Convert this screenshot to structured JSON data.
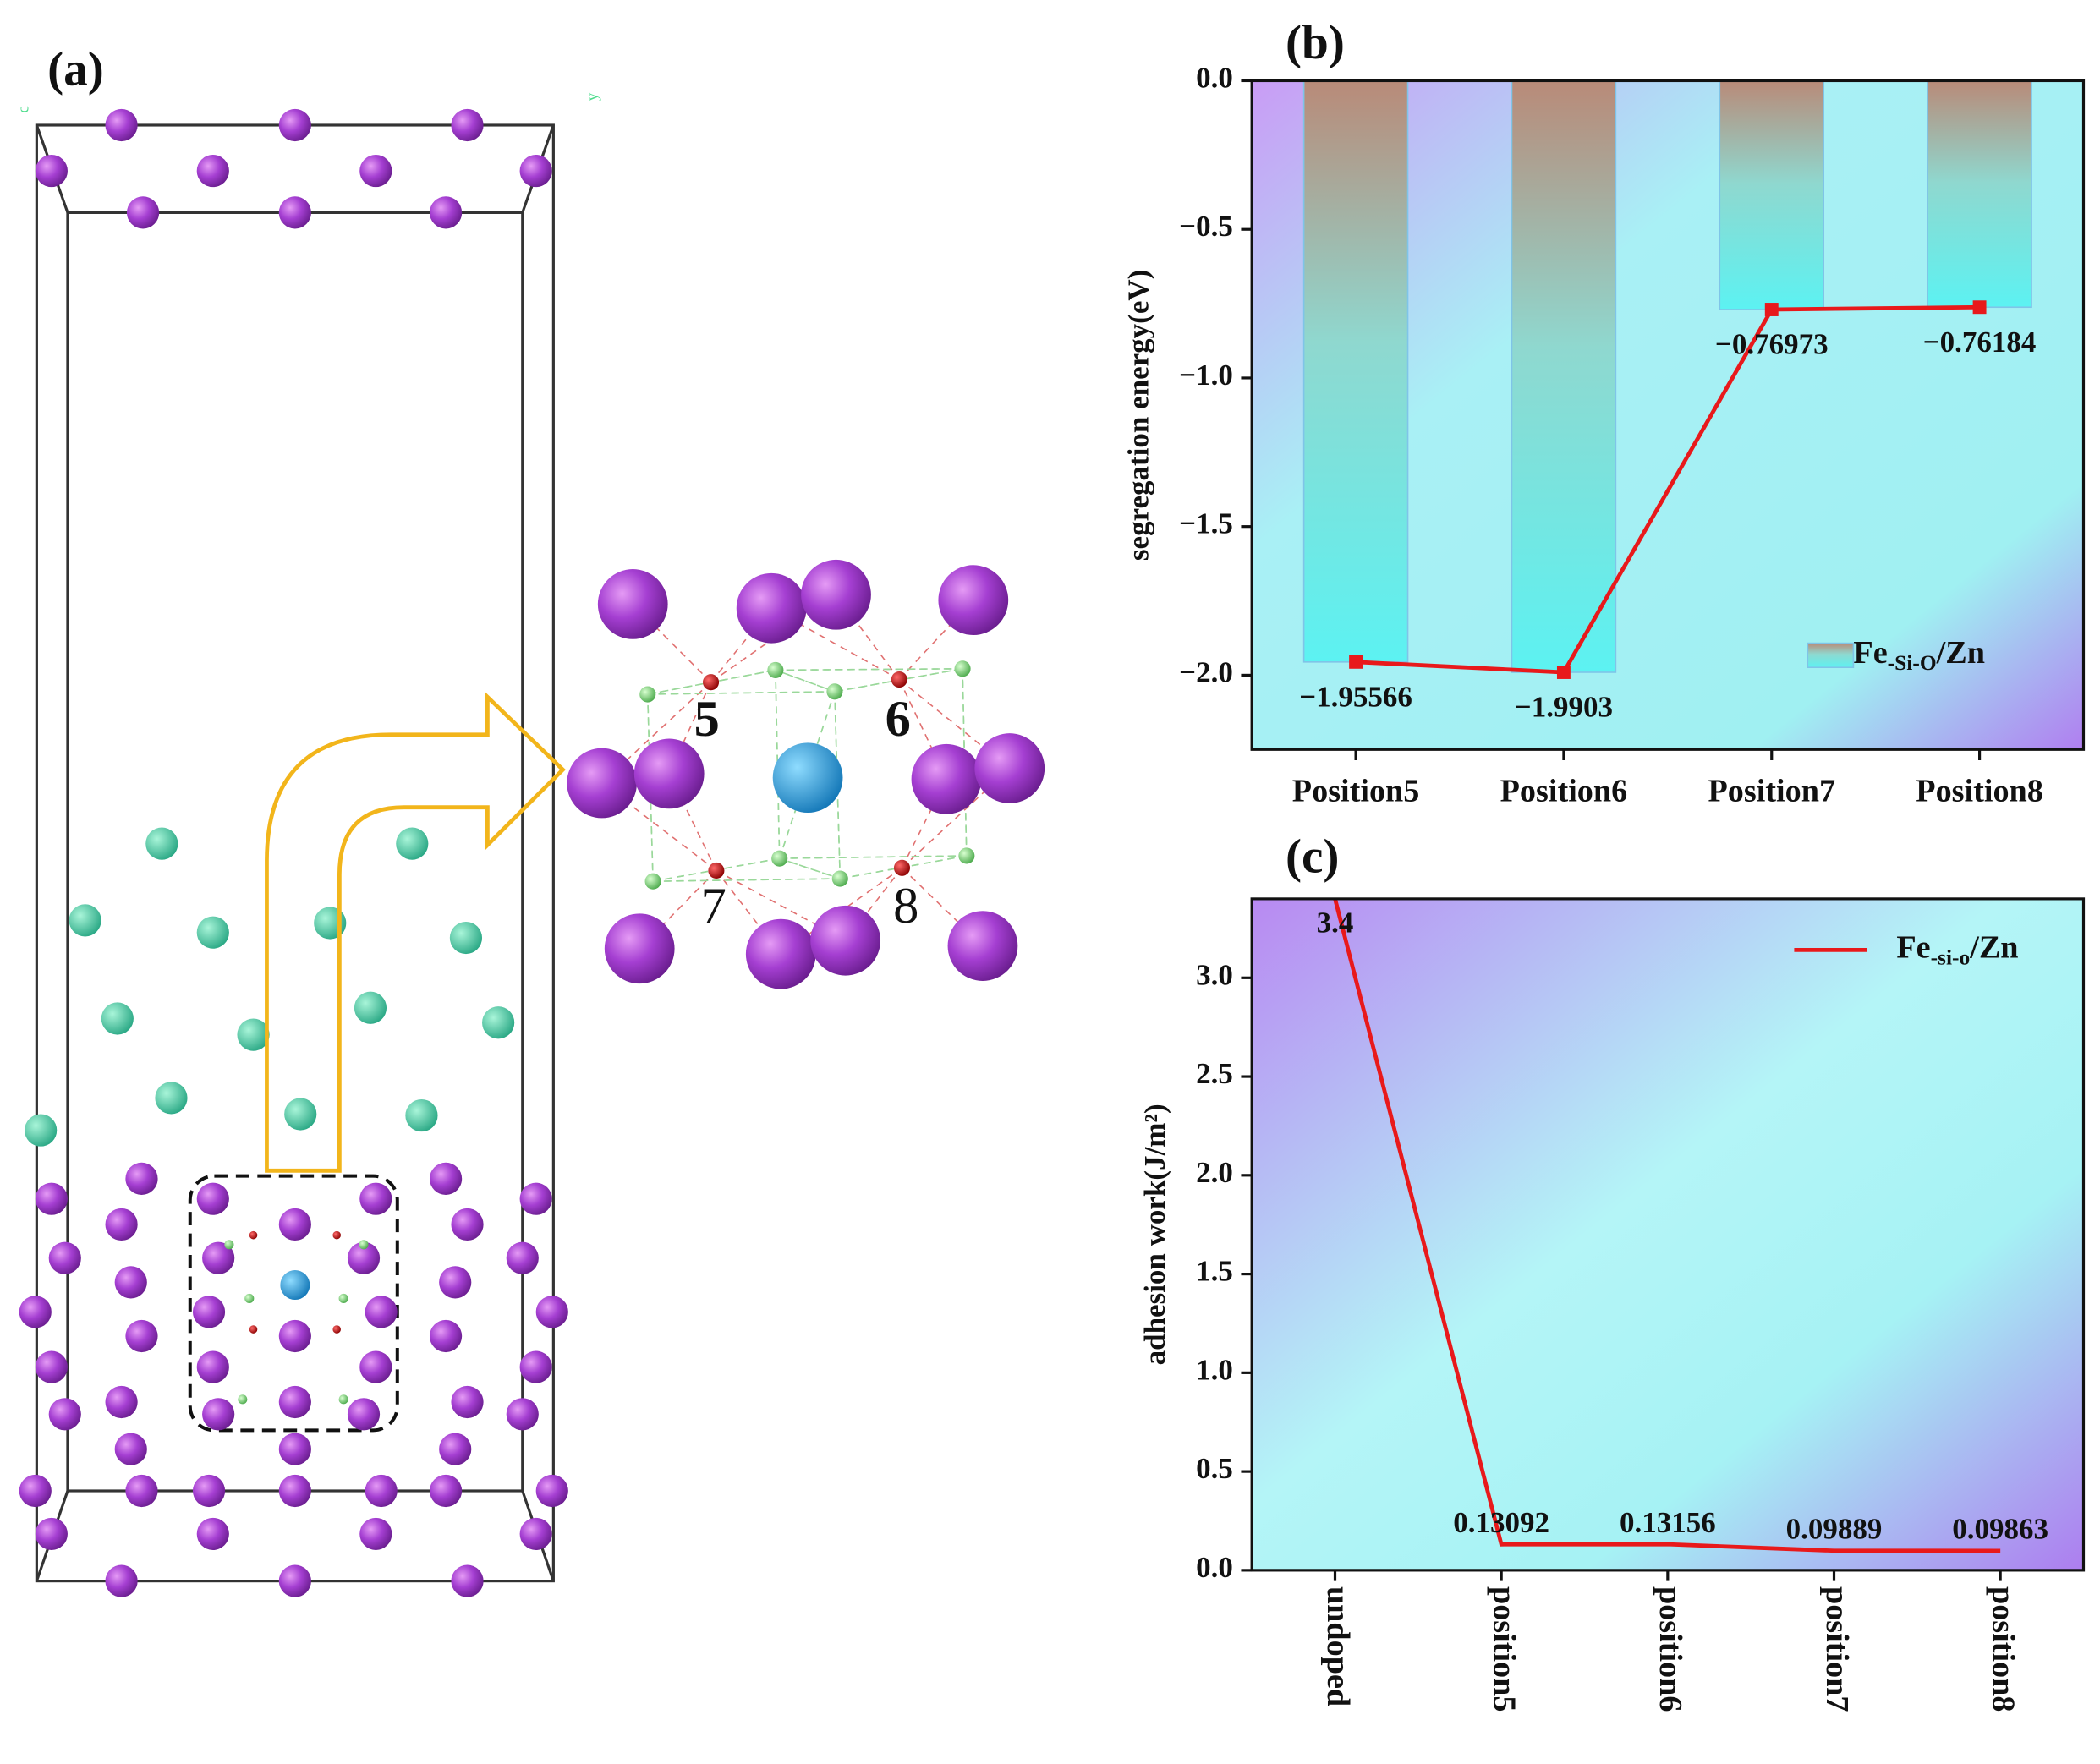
{
  "panel_a": {
    "label": "(a)",
    "axis_labels": [
      "c",
      "y"
    ],
    "sites": [
      "5",
      "6",
      "7",
      "8"
    ]
  },
  "chart_data": [
    {
      "type": "bar",
      "label": "(b)",
      "ylabel": "segregation energy(eV)",
      "categories": [
        "Position5",
        "Position6",
        "Position7",
        "Position8"
      ],
      "values": [
        -1.95566,
        -1.9903,
        -0.76973,
        -0.76184
      ],
      "value_labels": [
        "−1.95566",
        "−1.9903",
        "−0.76973",
        "−0.76184"
      ],
      "line_overlay": true,
      "line_color": "#e8191b",
      "series_name": {
        "base": "Fe",
        "sub": "-Si-O",
        "rest": "/Zn"
      },
      "legend": "lower right",
      "ylim": [
        -2.25,
        0
      ],
      "yticks": [
        {
          "value": 0,
          "label": "0.0"
        },
        {
          "value": -0.5,
          "label": "−0.5"
        },
        {
          "value": -1,
          "label": "−1.0"
        },
        {
          "value": -1.5,
          "label": "−1.5"
        },
        {
          "value": -2,
          "label": "−2.0"
        }
      ]
    },
    {
      "type": "line",
      "label": "(c)",
      "ylabel": "adhesion work(J/m²)",
      "categories": [
        "undoped",
        "position5",
        "position6",
        "position7",
        "position8"
      ],
      "values": [
        3.4,
        0.13092,
        0.13156,
        0.09889,
        0.09863
      ],
      "line_color": "#e8191b",
      "series_name": {
        "base": "Fe",
        "sub": "-si-o",
        "rest": "/Zn"
      },
      "legend": "upper right",
      "ylim": [
        0,
        3.4
      ],
      "yticks": [
        {
          "value": 0,
          "label": "0.0"
        },
        0.5,
        {
          "value": 1,
          "label": "1.0"
        },
        1.5,
        {
          "value": 2,
          "label": "2.0"
        },
        2.5,
        {
          "value": 3,
          "label": "3.0"
        }
      ]
    }
  ]
}
